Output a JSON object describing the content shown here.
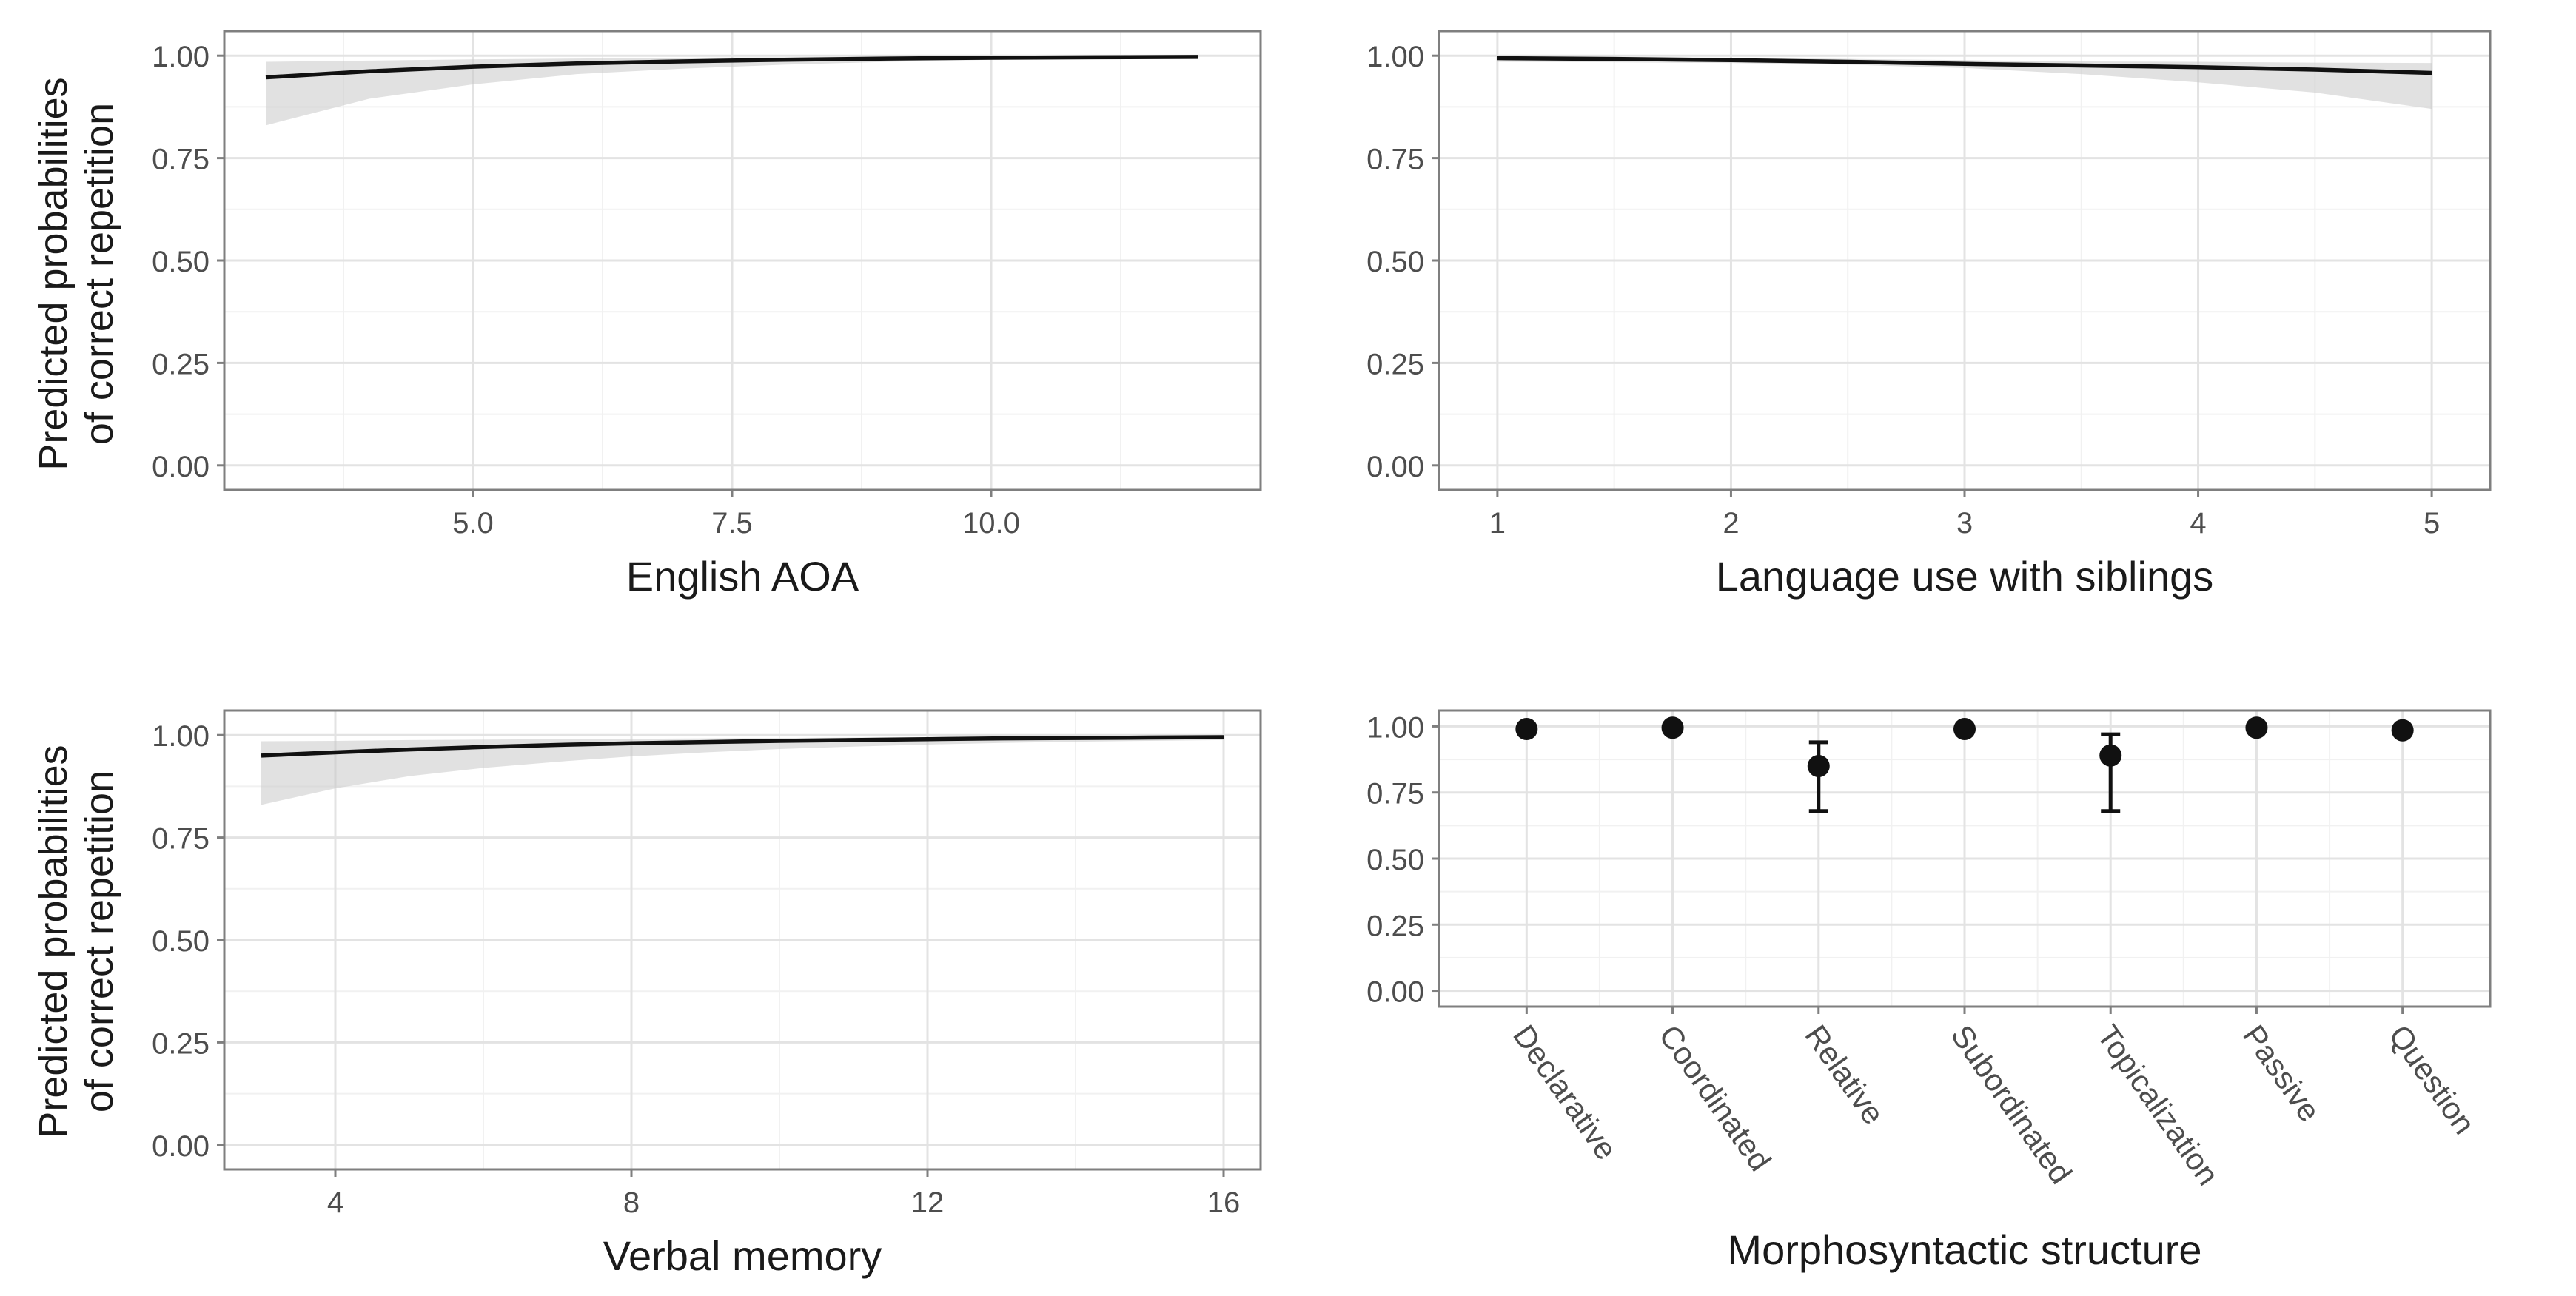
{
  "figure": {
    "shared_ylabel_line1": "Predicted probabilities",
    "shared_ylabel_line2": "of correct repetition"
  },
  "chart_data": [
    {
      "type": "line",
      "xlabel": "English AOA",
      "ylabel": "Predicted probabilities of correct repetition",
      "xlim": [
        2.6,
        12.6
      ],
      "ylim": [
        0,
        1
      ],
      "xticks": [
        5.0,
        7.5,
        10.0
      ],
      "xtick_labels": [
        "5.0",
        "7.5",
        "10.0"
      ],
      "yticks": [
        0,
        0.25,
        0.5,
        0.75,
        1.0
      ],
      "ytick_labels": [
        "0.00",
        "0.25",
        "0.50",
        "0.75",
        "1.00"
      ],
      "grid": true,
      "x": [
        3,
        4,
        5,
        6,
        7,
        8,
        9,
        10,
        11,
        12
      ],
      "y": [
        0.947,
        0.962,
        0.973,
        0.981,
        0.986,
        0.99,
        0.993,
        0.995,
        0.996,
        0.997
      ],
      "ci_lower": [
        0.83,
        0.895,
        0.93,
        0.955,
        0.968,
        0.978,
        0.985,
        0.99,
        0.992,
        0.994
      ],
      "ci_upper": [
        0.985,
        0.988,
        0.991,
        0.993,
        0.995,
        0.996,
        0.997,
        0.998,
        0.999,
        0.999
      ]
    },
    {
      "type": "line",
      "xlabel": "Language use with siblings",
      "ylabel": "",
      "xlim": [
        0.75,
        5.25
      ],
      "ylim": [
        0,
        1
      ],
      "xticks": [
        1,
        2,
        3,
        4,
        5
      ],
      "xtick_labels": [
        "1",
        "2",
        "3",
        "4",
        "5"
      ],
      "yticks": [
        0,
        0.25,
        0.5,
        0.75,
        1.0
      ],
      "ytick_labels": [
        "0.00",
        "0.25",
        "0.50",
        "0.75",
        "1.00"
      ],
      "grid": true,
      "x": [
        1,
        1.5,
        2,
        2.5,
        3,
        3.5,
        4,
        4.5,
        5
      ],
      "y": [
        0.994,
        0.992,
        0.989,
        0.985,
        0.98,
        0.976,
        0.972,
        0.966,
        0.958
      ],
      "ci_lower": [
        0.985,
        0.984,
        0.982,
        0.978,
        0.97,
        0.955,
        0.935,
        0.91,
        0.87
      ],
      "ci_upper": [
        0.998,
        0.997,
        0.995,
        0.992,
        0.989,
        0.986,
        0.985,
        0.983,
        0.982
      ]
    },
    {
      "type": "line",
      "xlabel": "Verbal memory",
      "ylabel": "Predicted probabilities of correct repetition",
      "xlim": [
        2.5,
        16.5
      ],
      "ylim": [
        0,
        1
      ],
      "xticks": [
        4,
        8,
        12,
        16
      ],
      "xtick_labels": [
        "4",
        "8",
        "12",
        "16"
      ],
      "yticks": [
        0,
        0.25,
        0.5,
        0.75,
        1.0
      ],
      "ytick_labels": [
        "0.00",
        "0.25",
        "0.50",
        "0.75",
        "1.00"
      ],
      "grid": true,
      "x": [
        3,
        4,
        5,
        6,
        7,
        8,
        9,
        10,
        11,
        12,
        13,
        14,
        15,
        16
      ],
      "y": [
        0.95,
        0.958,
        0.965,
        0.971,
        0.976,
        0.98,
        0.983,
        0.986,
        0.988,
        0.99,
        0.992,
        0.993,
        0.994,
        0.995
      ],
      "ci_lower": [
        0.83,
        0.87,
        0.9,
        0.92,
        0.935,
        0.948,
        0.958,
        0.966,
        0.972,
        0.977,
        0.981,
        0.984,
        0.986,
        0.988
      ],
      "ci_upper": [
        0.985,
        0.986,
        0.988,
        0.989,
        0.99,
        0.991,
        0.992,
        0.993,
        0.994,
        0.995,
        0.996,
        0.997,
        0.997,
        0.998
      ]
    },
    {
      "type": "scatter",
      "xlabel": "Morphosyntactic structure",
      "ylabel": "",
      "ylim": [
        0,
        1
      ],
      "yticks": [
        0,
        0.25,
        0.5,
        0.75,
        1.0
      ],
      "ytick_labels": [
        "0.00",
        "0.25",
        "0.50",
        "0.75",
        "1.00"
      ],
      "grid": true,
      "categories": [
        "Declarative",
        "Coordinated",
        "Relative",
        "Subordinated",
        "Topicalization",
        "Passive",
        "Question"
      ],
      "values": [
        0.99,
        0.995,
        0.85,
        0.99,
        0.89,
        0.995,
        0.985
      ],
      "ci_lower": [
        0.985,
        0.99,
        0.68,
        0.985,
        0.68,
        0.992,
        0.978
      ],
      "ci_upper": [
        0.995,
        0.998,
        0.94,
        0.995,
        0.97,
        0.998,
        0.99
      ]
    }
  ]
}
